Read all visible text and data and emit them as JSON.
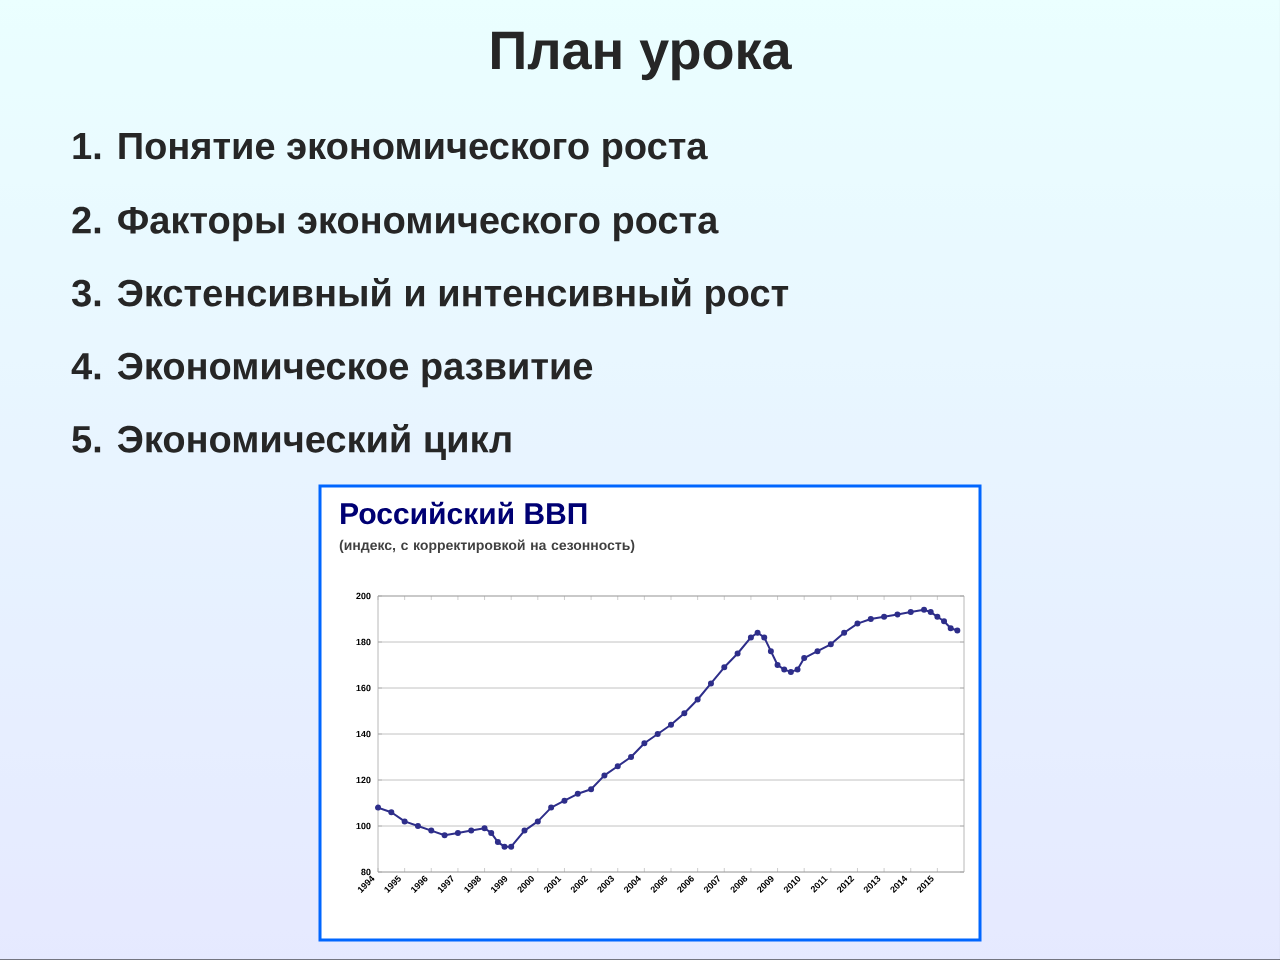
{
  "chart_data": {
    "type": "line",
    "title": "Российский ВВП",
    "subtitle": "(индекс, с корректировкой на сезонность)",
    "annotations": [
      "План урока",
      "1.   Понятие экономического роста",
      "2.   Факторы экономического роста",
      "3.   Экстенсивный и интенсивный рост",
      "4.   Экономическое развитие",
      "5.   Экономический цикл"
    ],
    "x": [
      1994.0,
      1994.5,
      1995.0,
      1995.5,
      1996.0,
      1996.5,
      1997.0,
      1997.5,
      1998.0,
      1998.25,
      1998.5,
      1998.75,
      1999.0,
      1999.5,
      2000.0,
      2000.5,
      2001.0,
      2001.5,
      2002.0,
      2002.5,
      2003.0,
      2003.5,
      2004.0,
      2004.5,
      2005.0,
      2005.5,
      2006.0,
      2006.5,
      2007.0,
      2007.5,
      2008.0,
      2008.25,
      2008.5,
      2008.75,
      2009.0,
      2009.25,
      2009.5,
      2009.75,
      2010.0,
      2010.5,
      2011.0,
      2011.5,
      2012.0,
      2012.5,
      2013.0,
      2013.5,
      2014.0,
      2014.5,
      2014.75,
      2015.0,
      2015.25,
      2015.5,
      2015.75
    ],
    "series": [
      {
        "color": "#2e2e8a",
        "values": [
          108,
          106,
          102,
          100,
          98,
          96,
          97,
          98,
          99,
          97,
          93,
          91,
          91,
          98,
          102,
          108,
          111,
          114,
          116,
          122,
          126,
          130,
          136,
          140,
          144,
          149,
          155,
          162,
          169,
          175,
          182,
          184,
          182,
          176,
          170,
          168,
          167,
          168,
          173,
          176,
          179,
          184,
          188,
          190,
          191,
          192,
          193,
          194,
          193,
          191,
          189,
          186,
          185
        ]
      }
    ],
    "xlim": [
      1994,
      2016
    ],
    "xticks": [
      1994,
      1995,
      1996,
      1997,
      1998,
      1999,
      2000,
      2001,
      2002,
      2003,
      2004,
      2005,
      2006,
      2007,
      2008,
      2009,
      2010,
      2011,
      2012,
      2013,
      2014,
      2015
    ],
    "ylim": [
      80,
      200
    ],
    "yticks": [
      80,
      100,
      120,
      140,
      160,
      180,
      200
    ],
    "grid": "y",
    "marker": "circle",
    "line_style": "solid"
  }
}
